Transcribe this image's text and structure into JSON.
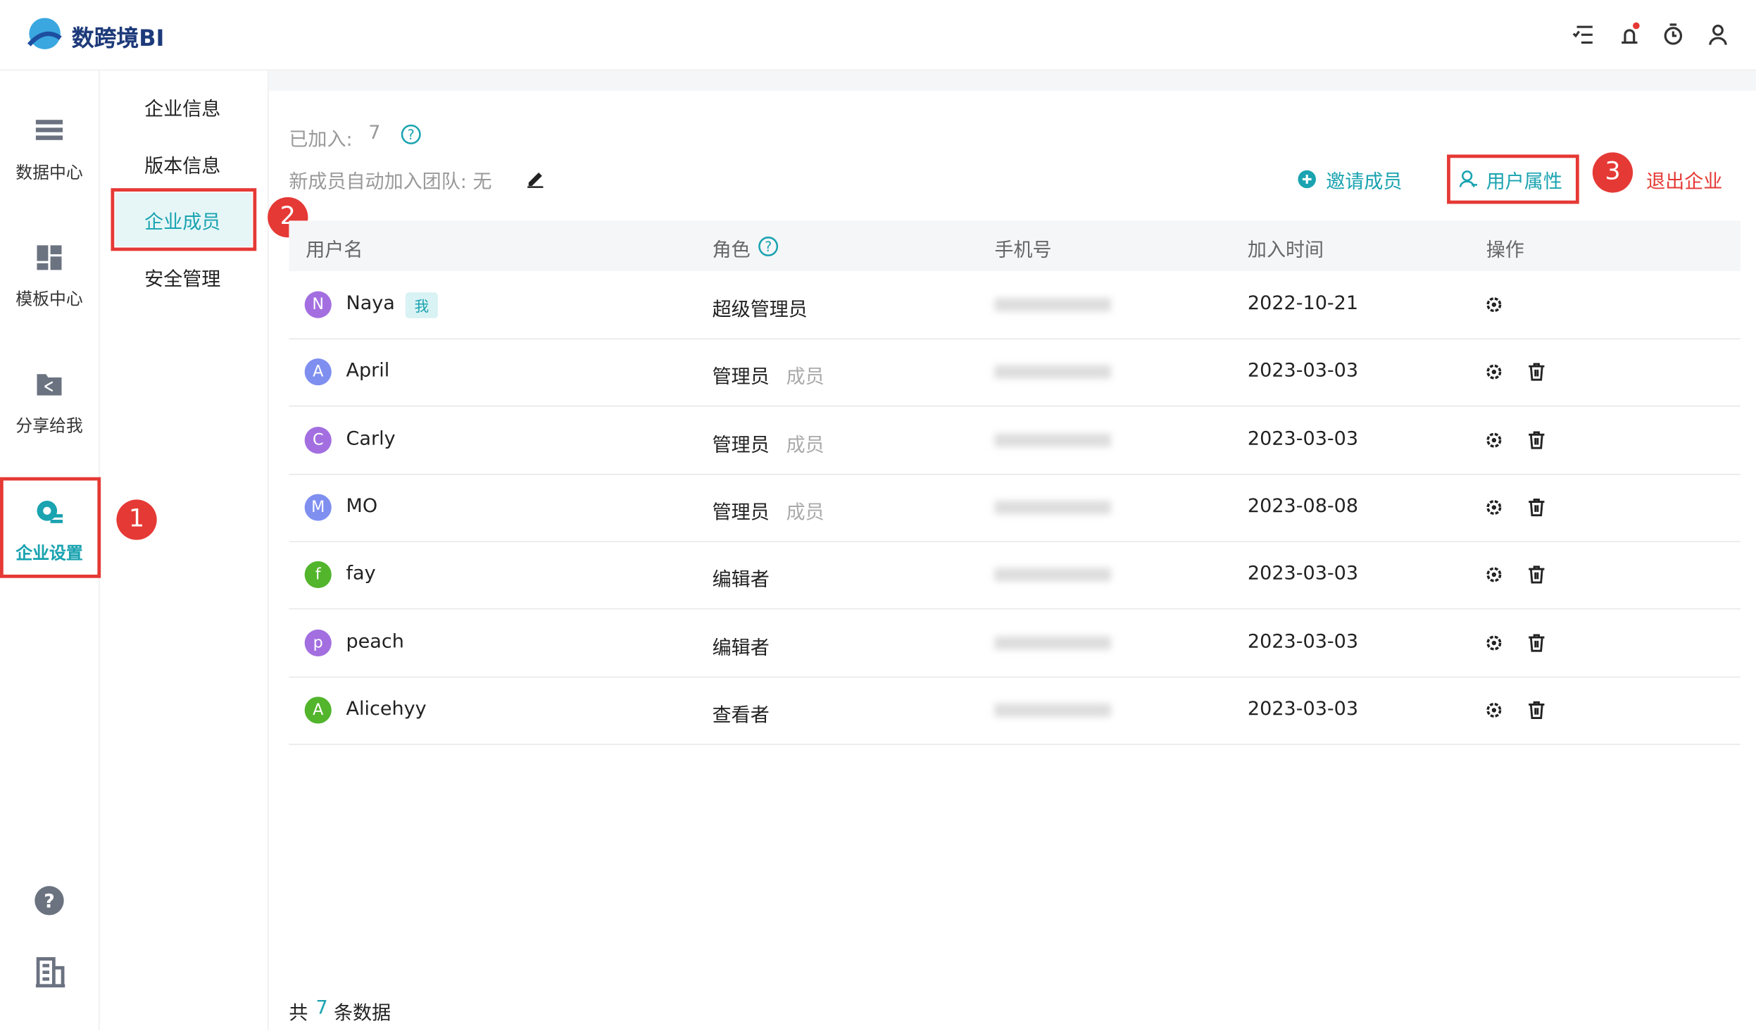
{
  "header": {
    "brand": "数跨境BI"
  },
  "sidebar": {
    "items": [
      "数据中心",
      "模板中心",
      "分享给我",
      "企业设置"
    ]
  },
  "submenu": {
    "items": [
      "企业信息",
      "版本信息",
      "企业成员",
      "安全管理"
    ]
  },
  "summary": {
    "joined_label": "已加入:",
    "joined_count": "7",
    "auto_join": "新成员自动加入团队: 无"
  },
  "actions": {
    "invite": "邀请成员",
    "attributes": "用户属性",
    "leave": "退出企业"
  },
  "annotations": [
    "1",
    "2",
    "3"
  ],
  "table": {
    "columns": [
      "用户名",
      "角色",
      "手机号",
      "加入时间",
      "操作"
    ],
    "rows": [
      {
        "initial": "N",
        "name": "Naya",
        "tag": "我",
        "role": "超级管理员",
        "date": "2022-10-21",
        "color": "#a36fe0"
      },
      {
        "initial": "A",
        "name": "April",
        "role": "管理员",
        "role2": "成员",
        "date": "2023-03-03",
        "color": "#7f8ff0"
      },
      {
        "initial": "C",
        "name": "Carly",
        "role": "管理员",
        "role2": "成员",
        "date": "2023-03-03",
        "color": "#a36fe0"
      },
      {
        "initial": "M",
        "name": "MO",
        "role": "管理员",
        "role2": "成员",
        "date": "2023-08-08",
        "color": "#7f8ff0"
      },
      {
        "initial": "f",
        "name": "fay",
        "role": "编辑者",
        "date": "2023-03-03",
        "color": "#52b52c"
      },
      {
        "initial": "p",
        "name": "peach",
        "role": "编辑者",
        "date": "2023-03-03",
        "color": "#a36fe0"
      },
      {
        "initial": "A",
        "name": "Alicehyy",
        "role": "查看者",
        "date": "2023-03-03",
        "color": "#52b52c"
      }
    ]
  },
  "footer": {
    "prefix": "共",
    "count": "7",
    "suffix": "条数据"
  }
}
